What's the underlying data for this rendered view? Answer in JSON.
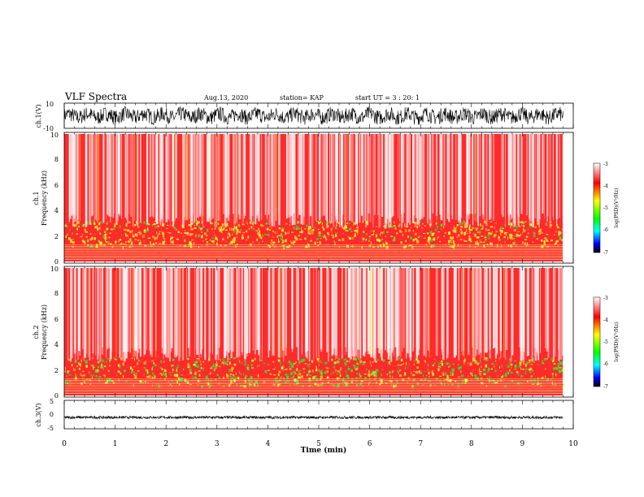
{
  "header": {
    "title": "VLF Spectra",
    "date": "Aug.13, 2020",
    "station": "station= KAP",
    "start": "start  UT =   3 : 20: 1"
  },
  "colors": {
    "spec_bg": "#ff3030",
    "spec_light": "#ffd0d0",
    "yellow": "#ffee33",
    "green": "#22ee33",
    "trace": "#000000"
  },
  "colorbar": {
    "label": "log(PSD)(V²/Hz)",
    "ticks": [
      "-3",
      "-4",
      "-5",
      "-6",
      "-7"
    ],
    "stops": [
      "#ffffff",
      "#ff0000",
      "#ffff00",
      "#00ff00",
      "#00ffff",
      "#0000ff",
      "#000000"
    ]
  },
  "chart_data": [
    {
      "type": "line",
      "ylabel": "ch.1(V)",
      "ylim": [
        -10,
        10
      ],
      "yticks": [
        "10",
        "-10"
      ],
      "xlim": [
        0,
        10
      ],
      "note": "waveform amplitude ~ -7 to 7 V across full span"
    },
    {
      "type": "heatmap",
      "ylabel": "ch.1\nFrequency (kHz)",
      "ylim": [
        0,
        10
      ],
      "yticks": [
        "0",
        "2",
        "4",
        "6",
        "8",
        "10"
      ],
      "xlim": [
        0,
        10
      ],
      "z_range": [
        -7,
        -3
      ],
      "data_end_min": 9.8,
      "bands": [
        {
          "from_khz": 0,
          "to_khz": 1.2,
          "level": "mixed yellow/red"
        },
        {
          "from_khz": 1.2,
          "to_khz": 3.2,
          "level": "yellow-green"
        },
        {
          "from_khz": 3.2,
          "to_khz": 10,
          "level": "red/white"
        }
      ]
    },
    {
      "type": "heatmap",
      "ylabel": "ch.2\nFrequency (kHz)",
      "ylim": [
        0,
        10
      ],
      "yticks": [
        "0",
        "2",
        "4",
        "6",
        "8",
        "10"
      ],
      "xlim": [
        0,
        10
      ],
      "z_range": [
        -7,
        -3
      ],
      "data_end_min": 9.8,
      "bands": [
        {
          "from_khz": 0,
          "to_khz": 0.8,
          "level": "mixed yellow/red"
        },
        {
          "from_khz": 0.8,
          "to_khz": 3.0,
          "level": "green-yellow"
        },
        {
          "from_khz": 3.0,
          "to_khz": 10,
          "level": "red/white"
        }
      ]
    },
    {
      "type": "line",
      "ylabel": "ch.3(V)",
      "ylim": [
        -5,
        5
      ],
      "yticks": [
        "5",
        "0",
        "-5"
      ],
      "xlim": [
        0,
        10
      ],
      "xlabel": "Time (min)",
      "xticks": [
        "0",
        "1",
        "2",
        "3",
        "4",
        "5",
        "6",
        "7",
        "8",
        "9",
        "10"
      ],
      "note": "trace near -1 V, amplitude ~0.4 V"
    }
  ]
}
